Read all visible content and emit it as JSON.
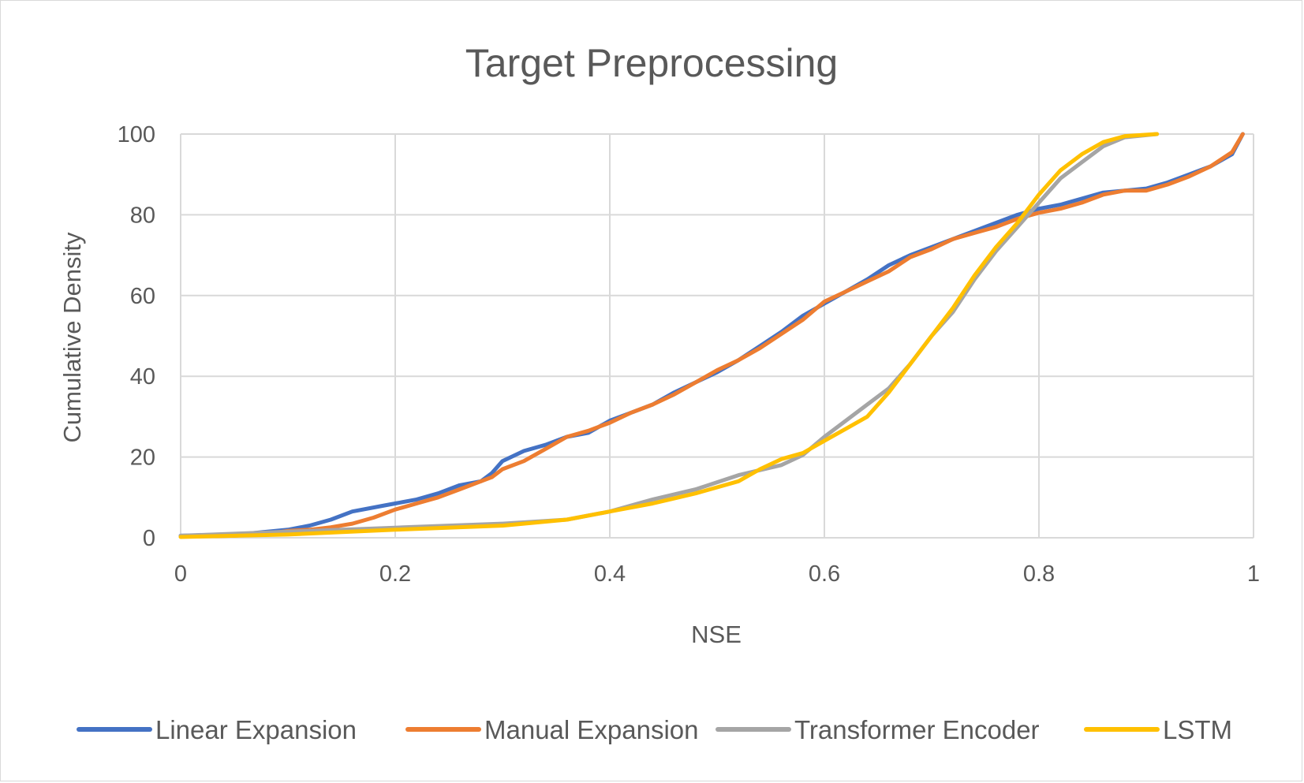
{
  "chart_data": {
    "type": "line",
    "title": "Target Preprocessing",
    "xlabel": "NSE",
    "ylabel": "Cumulative Density",
    "xlim": [
      0,
      1
    ],
    "ylim": [
      0,
      100
    ],
    "x_ticks": [
      "0",
      "0.2",
      "0.4",
      "0.6",
      "0.8",
      "1"
    ],
    "y_ticks": [
      "0",
      "20",
      "40",
      "60",
      "80",
      "100"
    ],
    "grid": true,
    "legend_position": "bottom",
    "series": [
      {
        "name": "Linear Expansion",
        "color": "#4472c4",
        "points": [
          [
            0,
            0.5
          ],
          [
            0.05,
            0.7
          ],
          [
            0.08,
            1.5
          ],
          [
            0.1,
            2
          ],
          [
            0.12,
            3
          ],
          [
            0.14,
            4.5
          ],
          [
            0.16,
            6.5
          ],
          [
            0.19,
            8
          ],
          [
            0.2,
            8.5
          ],
          [
            0.22,
            9.5
          ],
          [
            0.24,
            11
          ],
          [
            0.26,
            13
          ],
          [
            0.28,
            14
          ],
          [
            0.29,
            16
          ],
          [
            0.3,
            19
          ],
          [
            0.32,
            21.5
          ],
          [
            0.34,
            23
          ],
          [
            0.36,
            25
          ],
          [
            0.38,
            26
          ],
          [
            0.4,
            29
          ],
          [
            0.42,
            31
          ],
          [
            0.44,
            33
          ],
          [
            0.46,
            36
          ],
          [
            0.48,
            38.5
          ],
          [
            0.5,
            41
          ],
          [
            0.52,
            44
          ],
          [
            0.54,
            47.5
          ],
          [
            0.56,
            51
          ],
          [
            0.58,
            55
          ],
          [
            0.6,
            58
          ],
          [
            0.62,
            61
          ],
          [
            0.64,
            64
          ],
          [
            0.66,
            67.5
          ],
          [
            0.68,
            70
          ],
          [
            0.7,
            72
          ],
          [
            0.72,
            74
          ],
          [
            0.74,
            76
          ],
          [
            0.76,
            78
          ],
          [
            0.78,
            80
          ],
          [
            0.8,
            81.5
          ],
          [
            0.82,
            82.5
          ],
          [
            0.84,
            84
          ],
          [
            0.86,
            85.5
          ],
          [
            0.88,
            86
          ],
          [
            0.9,
            86.5
          ],
          [
            0.92,
            88
          ],
          [
            0.94,
            90
          ],
          [
            0.96,
            92
          ],
          [
            0.98,
            95
          ],
          [
            0.99,
            100
          ]
        ]
      },
      {
        "name": "Manual Expansion",
        "color": "#ed7d31",
        "points": [
          [
            0,
            0.3
          ],
          [
            0.05,
            0.5
          ],
          [
            0.08,
            1
          ],
          [
            0.1,
            1.7
          ],
          [
            0.12,
            2
          ],
          [
            0.14,
            2.6
          ],
          [
            0.16,
            3.5
          ],
          [
            0.18,
            5
          ],
          [
            0.2,
            7
          ],
          [
            0.22,
            8.5
          ],
          [
            0.24,
            10
          ],
          [
            0.26,
            12
          ],
          [
            0.28,
            14
          ],
          [
            0.29,
            15
          ],
          [
            0.3,
            17
          ],
          [
            0.32,
            19
          ],
          [
            0.34,
            22
          ],
          [
            0.36,
            25
          ],
          [
            0.38,
            26.5
          ],
          [
            0.4,
            28.5
          ],
          [
            0.42,
            31
          ],
          [
            0.44,
            33
          ],
          [
            0.46,
            35.5
          ],
          [
            0.48,
            38.5
          ],
          [
            0.5,
            41.5
          ],
          [
            0.52,
            44
          ],
          [
            0.54,
            47
          ],
          [
            0.56,
            50.5
          ],
          [
            0.58,
            54
          ],
          [
            0.6,
            58.5
          ],
          [
            0.62,
            61
          ],
          [
            0.64,
            63.5
          ],
          [
            0.66,
            66
          ],
          [
            0.68,
            69.5
          ],
          [
            0.7,
            71.5
          ],
          [
            0.72,
            74
          ],
          [
            0.74,
            75.5
          ],
          [
            0.76,
            77
          ],
          [
            0.78,
            79
          ],
          [
            0.8,
            80.5
          ],
          [
            0.82,
            81.5
          ],
          [
            0.84,
            83
          ],
          [
            0.86,
            85
          ],
          [
            0.88,
            86
          ],
          [
            0.9,
            86
          ],
          [
            0.92,
            87.5
          ],
          [
            0.94,
            89.5
          ],
          [
            0.96,
            92
          ],
          [
            0.98,
            95.5
          ],
          [
            0.99,
            100
          ]
        ]
      },
      {
        "name": "Transformer Encoder",
        "color": "#a5a5a5",
        "points": [
          [
            0,
            0.5
          ],
          [
            0.1,
            1.5
          ],
          [
            0.2,
            2.5
          ],
          [
            0.3,
            3.5
          ],
          [
            0.36,
            4.5
          ],
          [
            0.4,
            6.5
          ],
          [
            0.44,
            9.5
          ],
          [
            0.48,
            12
          ],
          [
            0.52,
            15.5
          ],
          [
            0.56,
            18
          ],
          [
            0.58,
            20.5
          ],
          [
            0.6,
            25
          ],
          [
            0.62,
            29
          ],
          [
            0.64,
            33
          ],
          [
            0.66,
            37
          ],
          [
            0.68,
            43
          ],
          [
            0.7,
            50
          ],
          [
            0.72,
            56
          ],
          [
            0.74,
            64
          ],
          [
            0.76,
            71
          ],
          [
            0.78,
            77
          ],
          [
            0.8,
            83
          ],
          [
            0.82,
            89
          ],
          [
            0.84,
            93
          ],
          [
            0.86,
            97
          ],
          [
            0.88,
            99.2
          ],
          [
            0.91,
            100
          ]
        ]
      },
      {
        "name": "LSTM",
        "color": "#ffc000",
        "points": [
          [
            0,
            0.2
          ],
          [
            0.1,
            0.8
          ],
          [
            0.2,
            2
          ],
          [
            0.3,
            3
          ],
          [
            0.36,
            4.5
          ],
          [
            0.4,
            6.5
          ],
          [
            0.44,
            8.5
          ],
          [
            0.48,
            11
          ],
          [
            0.52,
            14
          ],
          [
            0.54,
            17
          ],
          [
            0.56,
            19.5
          ],
          [
            0.58,
            21
          ],
          [
            0.6,
            24
          ],
          [
            0.62,
            27
          ],
          [
            0.64,
            30
          ],
          [
            0.66,
            36
          ],
          [
            0.68,
            43
          ],
          [
            0.7,
            50
          ],
          [
            0.72,
            57
          ],
          [
            0.74,
            65
          ],
          [
            0.76,
            72
          ],
          [
            0.78,
            78
          ],
          [
            0.8,
            85
          ],
          [
            0.82,
            91
          ],
          [
            0.84,
            95
          ],
          [
            0.86,
            98
          ],
          [
            0.88,
            99.5
          ],
          [
            0.91,
            100
          ]
        ]
      }
    ]
  }
}
